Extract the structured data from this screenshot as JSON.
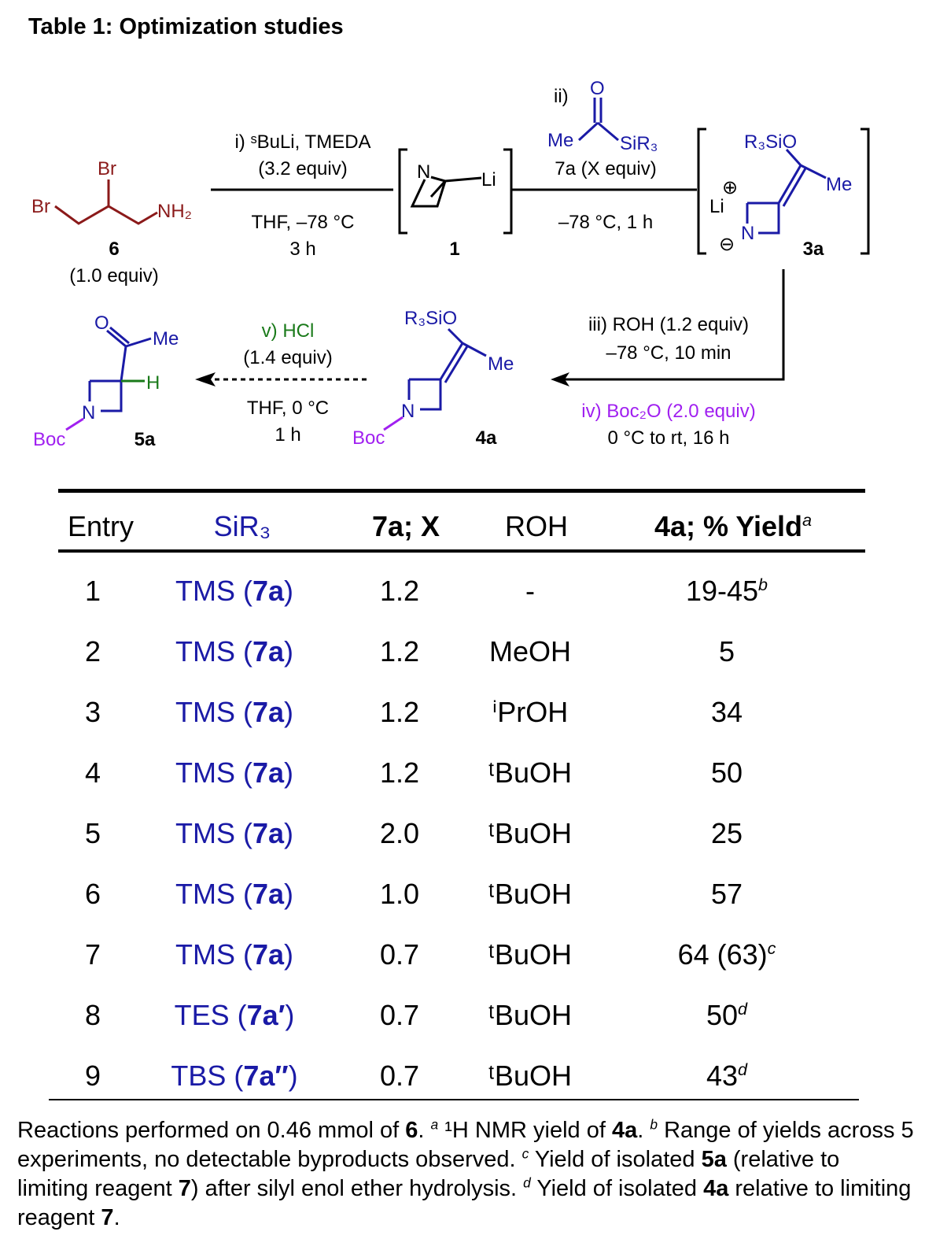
{
  "title": "Table 1: Optimization studies",
  "scheme": {
    "sm_label": "6",
    "sm_equiv": "(1.0 equiv)",
    "step1_top1": "i) ˢBuLi, TMEDA",
    "step1_top2": "(3.2 equiv)",
    "step1_bot1": "THF, –78 °C",
    "step1_bot2": "3 h",
    "int1_label": "1",
    "step2_label": "ii)",
    "step2_reagent": "7a (X equiv)",
    "step2_bot": "–78 °C, 1 h",
    "int2_label": "3a",
    "step3_a": "iii) ROH (1.2 equiv)",
    "step3_b": "–78 °C, 10 min",
    "step3_c": "iv) Boc₂O (2.0 equiv)",
    "step3_d": "0 °C to rt, 16 h",
    "int3_label": "4a",
    "step4_a": "v) HCl",
    "step4_b": "(1.4 equiv)",
    "step4_c": "THF, 0 °C",
    "step4_d": "1 h",
    "prod_label": "5a",
    "atoms": {
      "br": "Br",
      "nh2": "NH₂",
      "n": "N",
      "li": "Li",
      "me": "Me",
      "o": "O",
      "sir3": "SiR₃",
      "r3sio": "R₃SiO",
      "boc": "Boc",
      "h": "H",
      "plus": "⊕",
      "minus": "⊖"
    },
    "colors": {
      "sm": "#8b1a1a",
      "blue": "#1a1aa6",
      "green": "#1a7a1a",
      "purple": "#a020f0"
    }
  },
  "table": {
    "headers": [
      "Entry",
      "SiR₃",
      "7a; X",
      "ROH",
      "4a; % Yield"
    ],
    "header_sup": "a",
    "rows": [
      {
        "entry": "1",
        "sir3": "TMS",
        "cmpd": "7a",
        "x": "1.2",
        "roh": "-",
        "yield": "19-45",
        "sup": "b"
      },
      {
        "entry": "2",
        "sir3": "TMS",
        "cmpd": "7a",
        "x": "1.2",
        "roh": "MeOH",
        "yield": "5",
        "sup": ""
      },
      {
        "entry": "3",
        "sir3": "TMS",
        "cmpd": "7a",
        "x": "1.2",
        "roh": "ⁱPrOH",
        "yield": "34",
        "sup": ""
      },
      {
        "entry": "4",
        "sir3": "TMS",
        "cmpd": "7a",
        "x": "1.2",
        "roh": "ᵗBuOH",
        "yield": "50",
        "sup": ""
      },
      {
        "entry": "5",
        "sir3": "TMS",
        "cmpd": "7a",
        "x": "2.0",
        "roh": "ᵗBuOH",
        "yield": "25",
        "sup": ""
      },
      {
        "entry": "6",
        "sir3": "TMS",
        "cmpd": "7a",
        "x": "1.0",
        "roh": "ᵗBuOH",
        "yield": "57",
        "sup": ""
      },
      {
        "entry": "7",
        "sir3": "TMS",
        "cmpd": "7a",
        "x": "0.7",
        "roh": "ᵗBuOH",
        "yield": "64 (63)",
        "sup": "c"
      },
      {
        "entry": "8",
        "sir3": "TES",
        "cmpd": "7a′",
        "x": "0.7",
        "roh": "ᵗBuOH",
        "yield": "50",
        "sup": "d"
      },
      {
        "entry": "9",
        "sir3": "TBS",
        "cmpd": "7a″",
        "x": "0.7",
        "roh": "ᵗBuOH",
        "yield": "43",
        "sup": "d"
      }
    ]
  },
  "footnote": {
    "t1": "Reactions performed on 0.46 mmol of ",
    "b1": "6",
    "t2": ". ",
    "s_a": "a",
    "t3": " ¹H NMR yield of ",
    "b2": "4a",
    "t4": ". ",
    "s_b": "b",
    "t5": " Range of yields across 5 experiments, no detectable byproducts observed. ",
    "s_c": "c",
    "t6": " Yield of isolated ",
    "b3": "5a",
    "t7": " (relative to limiting reagent ",
    "b4": "7",
    "t8": ") after silyl enol ether hydrolysis. ",
    "s_d": "d",
    "t9": " Yield of isolated ",
    "b5": "4a",
    "t10": " relative to limiting reagent ",
    "b6": "7",
    "t11": "."
  }
}
